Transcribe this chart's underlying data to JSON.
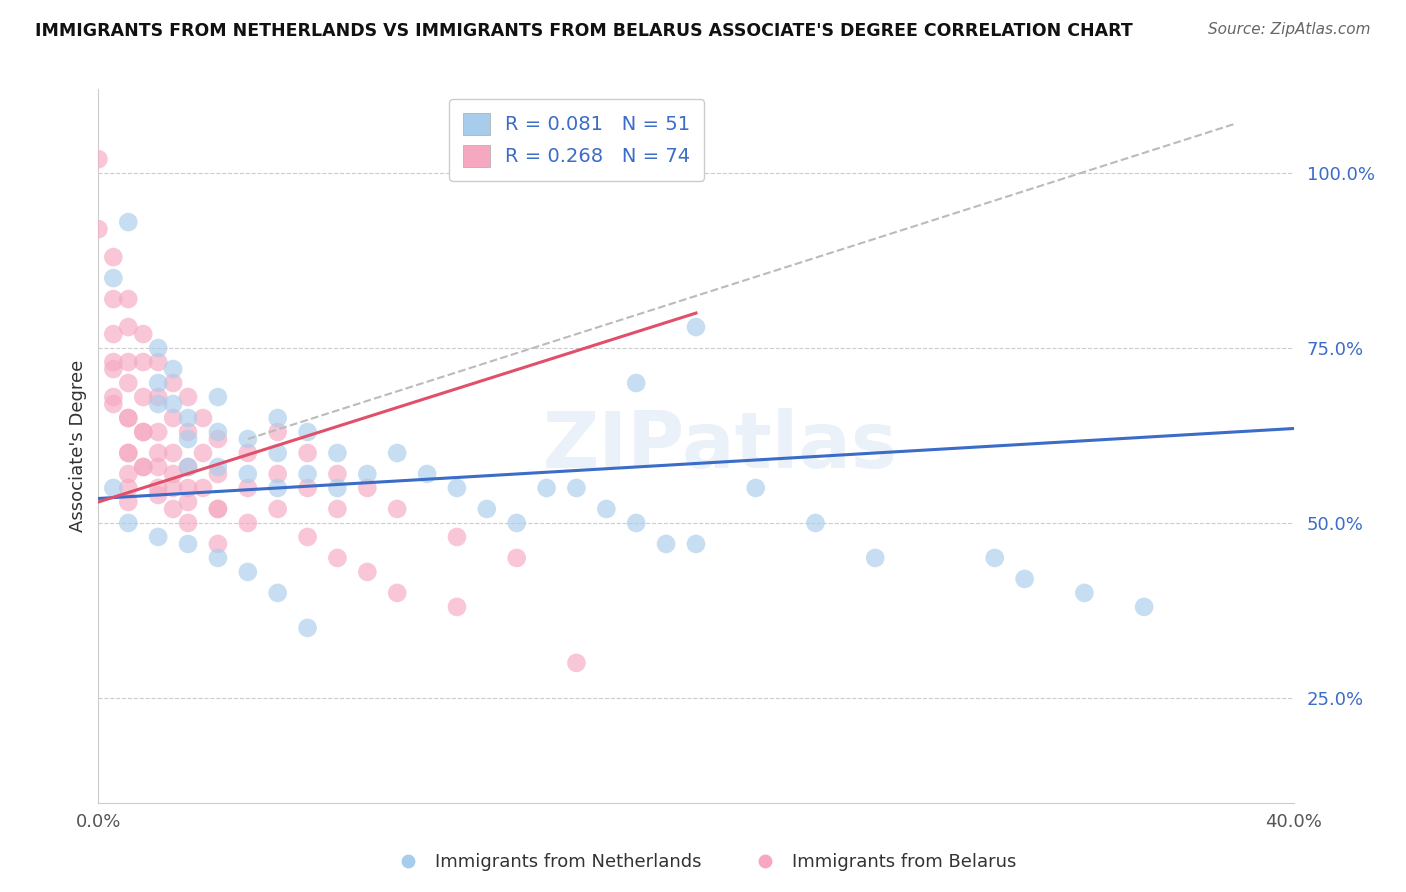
{
  "title": "IMMIGRANTS FROM NETHERLANDS VS IMMIGRANTS FROM BELARUS ASSOCIATE'S DEGREE CORRELATION CHART",
  "source": "Source: ZipAtlas.com",
  "ylabel": "Associate's Degree",
  "xlim": [
    0.0,
    0.4
  ],
  "ylim": [
    0.1,
    1.12
  ],
  "ytick_positions": [
    0.25,
    0.5,
    0.75,
    1.0
  ],
  "ytick_labels": [
    "25.0%",
    "50.0%",
    "75.0%",
    "100.0%"
  ],
  "xtick_positions": [
    0.0,
    0.4
  ],
  "xtick_labels": [
    "0.0%",
    "40.0%"
  ],
  "legend1_R": "0.081",
  "legend1_N": "51",
  "legend2_R": "0.268",
  "legend2_N": "74",
  "color_blue": "#A8CCEC",
  "color_pink": "#F5A8C0",
  "line_blue": "#3B6CC8",
  "line_pink": "#E0506A",
  "line_dashed_color": "#BBBBBB",
  "watermark": "ZIPatlas",
  "netherlands_x": [
    0.005,
    0.01,
    0.02,
    0.02,
    0.02,
    0.025,
    0.025,
    0.03,
    0.03,
    0.03,
    0.04,
    0.04,
    0.04,
    0.05,
    0.05,
    0.06,
    0.06,
    0.06,
    0.07,
    0.07,
    0.08,
    0.08,
    0.09,
    0.1,
    0.11,
    0.12,
    0.13,
    0.14,
    0.15,
    0.16,
    0.17,
    0.18,
    0.19,
    0.2,
    0.22,
    0.24,
    0.26,
    0.3,
    0.31,
    0.33,
    0.35,
    0.18,
    0.2,
    0.005,
    0.01,
    0.02,
    0.03,
    0.04,
    0.05,
    0.06,
    0.07
  ],
  "netherlands_y": [
    0.85,
    0.93,
    0.75,
    0.7,
    0.67,
    0.72,
    0.67,
    0.65,
    0.62,
    0.58,
    0.68,
    0.63,
    0.58,
    0.62,
    0.57,
    0.65,
    0.6,
    0.55,
    0.63,
    0.57,
    0.6,
    0.55,
    0.57,
    0.6,
    0.57,
    0.55,
    0.52,
    0.5,
    0.55,
    0.55,
    0.52,
    0.5,
    0.47,
    0.47,
    0.55,
    0.5,
    0.45,
    0.45,
    0.42,
    0.4,
    0.38,
    0.7,
    0.78,
    0.55,
    0.5,
    0.48,
    0.47,
    0.45,
    0.43,
    0.4,
    0.35
  ],
  "belarus_x": [
    0.0,
    0.0,
    0.005,
    0.005,
    0.005,
    0.005,
    0.005,
    0.01,
    0.01,
    0.01,
    0.01,
    0.01,
    0.01,
    0.01,
    0.01,
    0.015,
    0.015,
    0.015,
    0.015,
    0.015,
    0.02,
    0.02,
    0.02,
    0.02,
    0.02,
    0.025,
    0.025,
    0.025,
    0.025,
    0.03,
    0.03,
    0.03,
    0.03,
    0.035,
    0.035,
    0.035,
    0.04,
    0.04,
    0.04,
    0.05,
    0.05,
    0.06,
    0.06,
    0.07,
    0.07,
    0.08,
    0.08,
    0.09,
    0.1,
    0.12,
    0.14,
    0.005,
    0.005,
    0.01,
    0.01,
    0.01,
    0.015,
    0.015,
    0.02,
    0.02,
    0.025,
    0.025,
    0.03,
    0.03,
    0.04,
    0.04,
    0.05,
    0.06,
    0.07,
    0.08,
    0.09,
    0.1,
    0.12,
    0.16
  ],
  "belarus_y": [
    1.02,
    0.92,
    0.88,
    0.82,
    0.77,
    0.72,
    0.67,
    0.82,
    0.78,
    0.73,
    0.7,
    0.65,
    0.6,
    0.57,
    0.53,
    0.77,
    0.73,
    0.68,
    0.63,
    0.58,
    0.73,
    0.68,
    0.63,
    0.58,
    0.54,
    0.7,
    0.65,
    0.6,
    0.55,
    0.68,
    0.63,
    0.58,
    0.53,
    0.65,
    0.6,
    0.55,
    0.62,
    0.57,
    0.52,
    0.6,
    0.55,
    0.63,
    0.57,
    0.6,
    0.55,
    0.57,
    0.52,
    0.55,
    0.52,
    0.48,
    0.45,
    0.73,
    0.68,
    0.65,
    0.6,
    0.55,
    0.63,
    0.58,
    0.6,
    0.55,
    0.57,
    0.52,
    0.55,
    0.5,
    0.52,
    0.47,
    0.5,
    0.52,
    0.48,
    0.45,
    0.43,
    0.4,
    0.38,
    0.3
  ]
}
